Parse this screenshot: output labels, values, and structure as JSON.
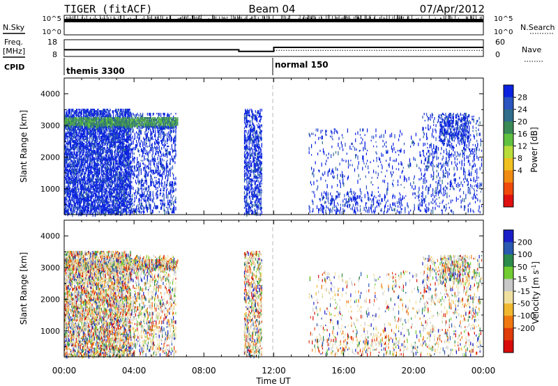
{
  "header": {
    "station": "TIGER (fitACF)",
    "beam": "Beam 04",
    "date": "07/Apr/2012"
  },
  "noise_panel": {
    "left_label": "N.Sky",
    "right_label": "N.Search",
    "left_ticks": [
      "10^5",
      "10^0"
    ],
    "right_ticks": [
      "10^5",
      "10^0"
    ]
  },
  "freq_panel": {
    "left_label_1": "Freq.",
    "left_label_2": "[MHz]",
    "right_label": "Nave",
    "left_ticks": [
      "18",
      "8"
    ],
    "right_ticks": [
      "60",
      "0"
    ],
    "freq_values": [
      12,
      11,
      13.4
    ],
    "nave_value": 22,
    "freq_range": [
      8,
      18
    ],
    "nave_range": [
      0,
      60
    ]
  },
  "cpid_panel": {
    "label": "CPID",
    "modes": [
      {
        "name": "themis 3300",
        "start_hour": 0
      },
      {
        "name": "normal 150",
        "start_hour": 12
      }
    ]
  },
  "x_axis": {
    "label": "Time UT",
    "ticks": [
      "00:00",
      "04:00",
      "08:00",
      "12:00",
      "16:00",
      "20:00",
      "00:00"
    ],
    "range_hours": [
      0,
      24
    ]
  },
  "power_panel": {
    "ylabel": "Slant Range [km]",
    "yticks": [
      "4000",
      "3000",
      "2000",
      "1000"
    ],
    "ylim": [
      180,
      4500
    ],
    "colorbar_label": "Power [dB]",
    "colorbar_ticks": [
      "28",
      "24",
      "20",
      "16",
      "12",
      "8",
      "4"
    ],
    "colors": [
      "#0a22e0",
      "#2a55c0",
      "#2f6d8a",
      "#3a8a56",
      "#60c040",
      "#b8dc3a",
      "#f0c020",
      "#f08a10",
      "#f04a0a",
      "#e01010"
    ]
  },
  "velocity_panel": {
    "ylabel": "Slant Range [km]",
    "yticks": [
      "4000",
      "3000",
      "2000",
      "1000"
    ],
    "ylim": [
      180,
      4500
    ],
    "colorbar_label": "Velocity [m s^-1]",
    "colorbar_ticks": [
      "200",
      "100",
      "50",
      "15",
      "-15",
      "-50",
      "-100",
      "-200"
    ],
    "colors": [
      "#1a1ec8",
      "#2a5ab0",
      "#2c8a4a",
      "#70cc30",
      "#c8c8c8",
      "#f0e0a0",
      "#f0b830",
      "#f07810",
      "#e03c0a",
      "#d80a0a"
    ]
  },
  "chart_data": {
    "type": "heatmap",
    "x_units": "hours UT",
    "y_units": "km",
    "echo_regions": [
      {
        "t0": 0.0,
        "t1": 3.8,
        "r0": 200,
        "r1": 3500,
        "density": 0.55
      },
      {
        "t0": 3.8,
        "t1": 6.4,
        "r0": 250,
        "r1": 3400,
        "density": 0.22
      },
      {
        "t0": 0.0,
        "t1": 6.5,
        "r0": 2950,
        "r1": 3250,
        "density": 0.7
      },
      {
        "t0": 10.3,
        "t1": 11.3,
        "r0": 200,
        "r1": 3500,
        "density": 0.35
      },
      {
        "t0": 14.0,
        "t1": 20.5,
        "r0": 250,
        "r1": 2900,
        "density": 0.05
      },
      {
        "t0": 14.5,
        "t1": 19.5,
        "r0": 250,
        "r1": 900,
        "density": 0.1
      },
      {
        "t0": 20.5,
        "t1": 23.9,
        "r0": 250,
        "r1": 3400,
        "density": 0.12
      },
      {
        "t0": 21.5,
        "t1": 23.2,
        "r0": 2500,
        "r1": 3400,
        "density": 0.3
      }
    ]
  }
}
